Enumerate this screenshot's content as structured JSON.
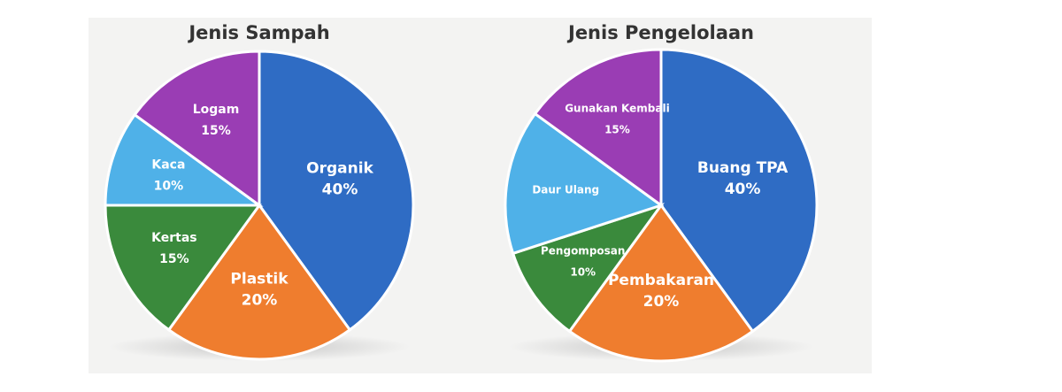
{
  "chart_data": [
    {
      "type": "pie",
      "title": "Jenis Sampah",
      "categories": [
        "Organik",
        "Plastik",
        "Kertas",
        "Kaca",
        "Logam"
      ],
      "values": [
        40,
        20,
        15,
        10,
        15
      ],
      "value_labels": [
        "40%",
        "20%",
        "15%",
        "10%",
        "15%"
      ],
      "colors": [
        "#2f6cc4",
        "#ef7d2e",
        "#3a8a3c",
        "#4fb1e8",
        "#9a3db4"
      ]
    },
    {
      "type": "pie",
      "title": "Jenis Pengelolaan",
      "categories": [
        "Buang TPA",
        "Pembakaran",
        "Pengomposan",
        "Daur Ulang",
        "Gunakan Kembali"
      ],
      "values": [
        40,
        20,
        10,
        15,
        15
      ],
      "value_labels": [
        "40%",
        "20%",
        "10%",
        null,
        "15%"
      ],
      "colors": [
        "#2f6cc4",
        "#ef7d2e",
        "#3a8a3c",
        "#4fb1e8",
        "#9a3db4"
      ]
    }
  ]
}
